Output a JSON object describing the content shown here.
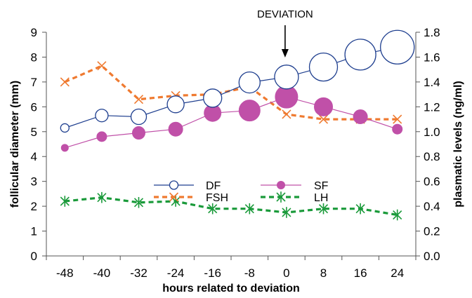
{
  "chart_data": {
    "type": "line",
    "title": "",
    "xlabel": "hours related to deviation",
    "ylabel": "follicular diameter (mm)",
    "y2label": "plasmatic levels (ng/ml)",
    "annotation": "DEVIATION",
    "annotation_x": 0,
    "x": [
      -48,
      -40,
      -32,
      -24,
      -16,
      -8,
      0,
      8,
      16,
      24
    ],
    "xlim": [
      -52,
      28
    ],
    "ylim": [
      0,
      9
    ],
    "y2lim": [
      0,
      1.8
    ],
    "y_ticks": [
      0,
      1,
      2,
      3,
      4,
      5,
      6,
      7,
      8,
      9
    ],
    "y2_ticks": [
      "0.0",
      "0.2",
      "0.4",
      "0.6",
      "0.8",
      "1.0",
      "1.2",
      "1.4",
      "1.6",
      "1.8"
    ],
    "grid": false,
    "legend_position": "center",
    "series": [
      {
        "name": "DF",
        "axis": "left",
        "color": "#1f3f8f",
        "style": "solid line, open circle markers growing in size",
        "values": [
          5.15,
          5.65,
          5.6,
          6.1,
          6.35,
          6.98,
          7.2,
          7.6,
          8.1,
          8.4
        ]
      },
      {
        "name": "SF",
        "axis": "left",
        "color": "#c050a8",
        "style": "solid line, filled circle markers",
        "values": [
          4.35,
          4.8,
          4.95,
          5.1,
          5.75,
          5.85,
          6.4,
          6.0,
          5.6,
          5.1
        ]
      },
      {
        "name": "FSH",
        "axis": "right",
        "color": "#ef7a30",
        "style": "dashed line, x markers",
        "values": [
          1.4,
          1.53,
          1.26,
          1.29,
          1.3,
          1.36,
          1.14,
          1.1,
          1.1,
          1.1
        ]
      },
      {
        "name": "LH",
        "axis": "right",
        "color": "#1a9a3a",
        "style": "dashed line, asterisk markers",
        "values": [
          0.44,
          0.47,
          0.43,
          0.44,
          0.38,
          0.38,
          0.35,
          0.38,
          0.38,
          0.33
        ]
      }
    ]
  }
}
